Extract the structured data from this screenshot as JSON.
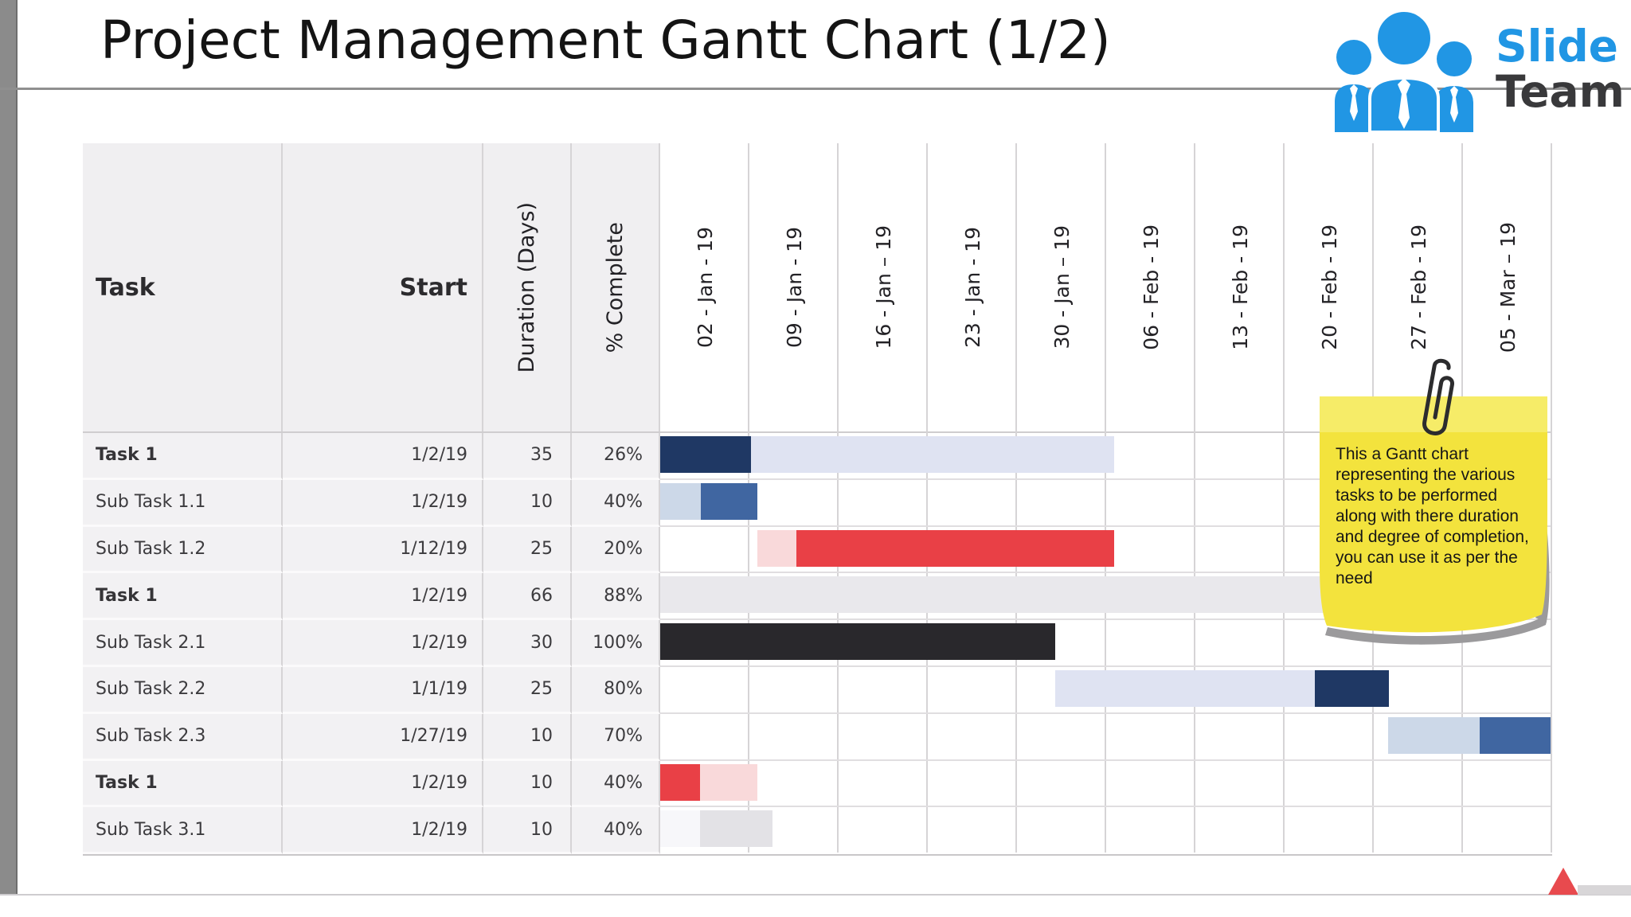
{
  "ui": {
    "slide_title": "Project Management Gantt Chart (1/2)",
    "logo": {
      "text_top": "Slide",
      "text_bottom": "Team",
      "icon": "people-group-icon",
      "blue": "#2196e4",
      "dark": "#39393b"
    },
    "sticky_note": {
      "text": "This a Gantt chart representing the various tasks to be performed along with there duration and degree of completion, you can use it as per the need",
      "paper_color": "#f3e33d",
      "top_band_color": "#f6ec68",
      "shadow_color": "#9b9a9c"
    },
    "bottom_marker_color": "#e84a4e"
  },
  "colors": {
    "navy": "#1f3864",
    "lavender": "#dfe3f2",
    "ltblue": "#ccd8e8",
    "medblue": "#4066a1",
    "pink": "#f9d9da",
    "red": "#e94046",
    "graybar": "#e9e8ec",
    "black": "#29282c",
    "faint": "#f7f7fa",
    "ltgray": "#e3e2e6"
  },
  "chart_data": {
    "type": "gantt",
    "title": "Project Management Gantt Chart (1/2)",
    "header_labels": {
      "task": "Task",
      "start": "Start",
      "duration": "Duration (Days)",
      "complete": "% Complete"
    },
    "timeline": [
      "02 - Jan - 19",
      "09 - Jan - 19",
      "16 - Jan – 19",
      "23 - Jan - 19",
      "30 - Jan – 19",
      "06 - Feb - 19",
      "13 - Feb - 19",
      "20 - Feb - 19",
      "27 - Feb - 19",
      "05 - Mar – 19"
    ],
    "timeline_start_date": "1/2/19",
    "days_per_column": 7,
    "columns_count": 10,
    "tasks": [
      {
        "task": "Task 1",
        "bold": true,
        "start": "1/2/19",
        "duration": 35,
        "complete": "26%",
        "segments": [
          {
            "color": "navy",
            "from": 0,
            "to": 7.1
          },
          {
            "color": "lavender",
            "from": 7.1,
            "to": 35.6
          }
        ]
      },
      {
        "task": "Sub Task 1.1",
        "bold": false,
        "start": "1/2/19",
        "duration": 10,
        "complete": "40%",
        "segments": [
          {
            "color": "ltblue",
            "from": 0,
            "to": 3.2
          },
          {
            "color": "medblue",
            "from": 3.2,
            "to": 7.6
          }
        ]
      },
      {
        "task": "Sub Task 1.2",
        "bold": false,
        "start": "1/12/19",
        "duration": 25,
        "complete": "20%",
        "segments": [
          {
            "color": "pink",
            "from": 7.6,
            "to": 10.7
          },
          {
            "color": "red",
            "from": 10.7,
            "to": 35.6
          }
        ]
      },
      {
        "task": "Task 1",
        "bold": true,
        "start": "1/2/19",
        "duration": 66,
        "complete": "88%",
        "segments": [
          {
            "color": "graybar",
            "from": 0,
            "to": 66
          }
        ]
      },
      {
        "task": "Sub Task 2.1",
        "bold": false,
        "start": "1/2/19",
        "duration": 30,
        "complete": "100%",
        "segments": [
          {
            "color": "black",
            "from": 0,
            "to": 31
          }
        ]
      },
      {
        "task": "Sub Task 2.2",
        "bold": false,
        "start": "1/1/19",
        "duration": 25,
        "complete": "80%",
        "segments": [
          {
            "color": "lavender",
            "from": 31,
            "to": 51.4
          },
          {
            "color": "navy",
            "from": 51.4,
            "to": 57.2
          }
        ]
      },
      {
        "task": "Sub Task 2.3",
        "bold": false,
        "start": "1/27/19",
        "duration": 10,
        "complete": "70%",
        "segments": [
          {
            "color": "ltblue",
            "from": 57.1,
            "to": 64.3
          },
          {
            "color": "medblue",
            "from": 64.3,
            "to": 70
          }
        ]
      },
      {
        "task": "Task 1",
        "bold": true,
        "start": "1/2/19",
        "duration": 10,
        "complete": "40%",
        "segments": [
          {
            "color": "red",
            "from": 0,
            "to": 3.1
          },
          {
            "color": "pink",
            "from": 3.1,
            "to": 7.6
          }
        ]
      },
      {
        "task": "Sub Task 3.1",
        "bold": false,
        "start": "1/2/19",
        "duration": 10,
        "complete": "40%",
        "segments": [
          {
            "color": "faint",
            "from": 0,
            "to": 3.1
          },
          {
            "color": "ltgray",
            "from": 3.1,
            "to": 8.8
          }
        ]
      }
    ]
  }
}
